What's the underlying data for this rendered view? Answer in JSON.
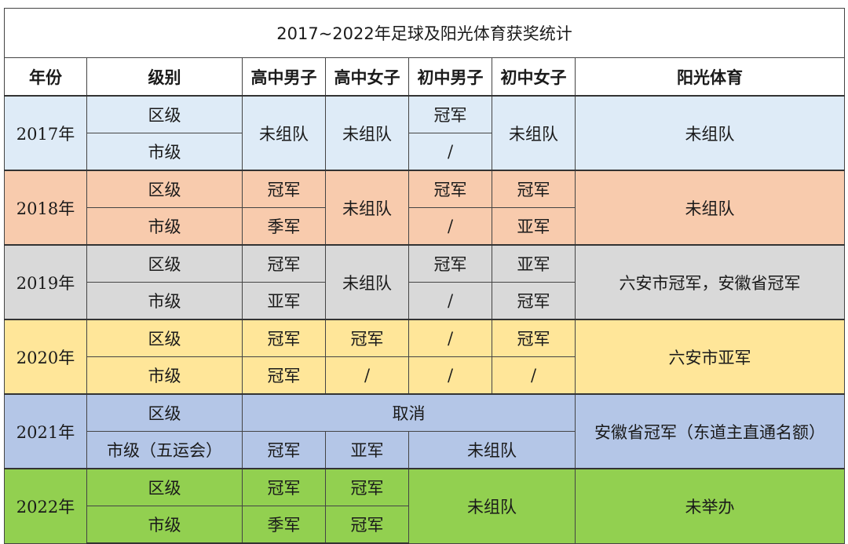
{
  "title": "2017~2022年足球及阳光体育获奖统计",
  "headers": {
    "year": "年份",
    "level": "级别",
    "hs_boys": "高中男子",
    "hs_girls": "高中女子",
    "ms_boys": "初中男子",
    "ms_girls": "初中女子",
    "sunshine": "阳光体育"
  },
  "y2017": {
    "year": "2017年",
    "level1": "区级",
    "level2": "市级",
    "hs_boys": "未组队",
    "hs_girls": "未组队",
    "ms_boys1": "冠军",
    "ms_boys2": "/",
    "ms_girls": "未组队",
    "sunshine": "未组队"
  },
  "y2018": {
    "year": "2018年",
    "level1": "区级",
    "level2": "市级",
    "hs_boys1": "冠军",
    "hs_boys2": "季军",
    "hs_girls": "未组队",
    "ms_boys1": "冠军",
    "ms_boys2": "/",
    "ms_girls1": "冠军",
    "ms_girls2": "亚军",
    "sunshine": "未组队"
  },
  "y2019": {
    "year": "2019年",
    "level1": "区级",
    "level2": "市级",
    "hs_boys1": "冠军",
    "hs_boys2": "亚军",
    "hs_girls": "未组队",
    "ms_boys1": "冠军",
    "ms_boys2": "/",
    "ms_girls1": "亚军",
    "ms_girls2": "冠军",
    "sunshine": "六安市冠军，安徽省冠军"
  },
  "y2020": {
    "year": "2020年",
    "level1": "区级",
    "level2": "市级",
    "hs_boys1": "冠军",
    "hs_boys2": "冠军",
    "hs_girls1": "冠军",
    "hs_girls2": "/",
    "ms_boys1": "/",
    "ms_boys2": "/",
    "ms_girls1": "冠军",
    "ms_girls2": "/",
    "sunshine": "六安市亚军"
  },
  "y2021": {
    "year": "2021年",
    "level1": "区级",
    "level2": "市级（五运会）",
    "cancelled": "取消",
    "hs_boys2": "冠军",
    "hs_girls2": "亚军",
    "ms2": "未组队",
    "sunshine": "安徽省冠军（东道主直通名额）"
  },
  "y2022": {
    "year": "2022年",
    "level1": "区级",
    "level2": "市级",
    "hs_boys1": "冠军",
    "hs_boys2": "季军",
    "hs_girls1": "冠军",
    "hs_girls2": "冠军",
    "ms": "未组队",
    "sunshine": "未举办"
  }
}
